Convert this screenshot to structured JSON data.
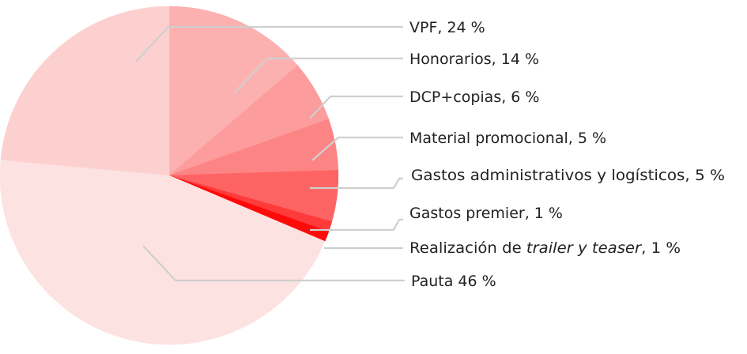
{
  "chart_data": {
    "type": "pie",
    "start_angle_deg": 0,
    "direction": "clockwise",
    "slices": [
      {
        "label": "Honorarios, 14 %",
        "value": 14,
        "color": "#fdb0b0"
      },
      {
        "label": "DCP+copias, 6 %",
        "value": 6,
        "color": "#fd9c9c"
      },
      {
        "label": "Material promocional, 5 %",
        "value": 5,
        "color": "#fd8484"
      },
      {
        "label": "Gastos administrativos y logísticos, 5 %",
        "value": 5,
        "color": "#fe6464"
      },
      {
        "label": "Gastos premier, 1 %",
        "value": 1,
        "color": "#ff3a3a"
      },
      {
        "label_prefix": "Realización de ",
        "label_italic": "trailer y teaser",
        "label_suffix": ", 1 %",
        "value": 1,
        "color": "#ff0a0a"
      },
      {
        "label": "Pauta 46 %",
        "value": 46,
        "color": "#fde2e2"
      },
      {
        "label": "VPF, 24 %",
        "value": 24,
        "color": "#fdd0d0"
      }
    ]
  }
}
